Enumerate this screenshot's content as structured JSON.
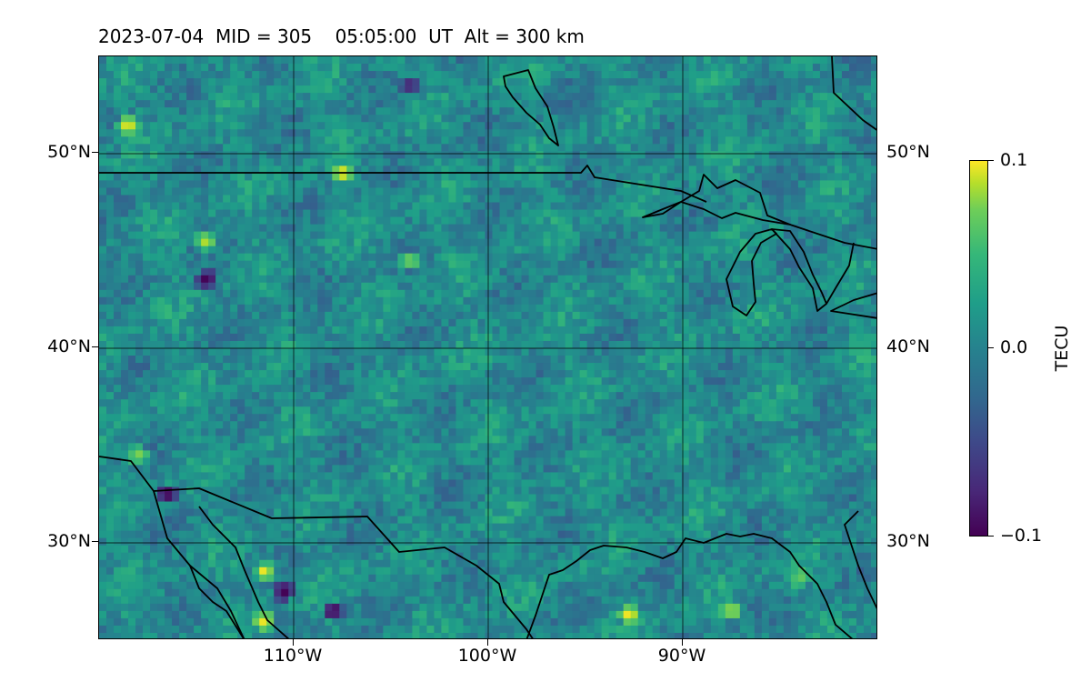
{
  "title": "2023-07-04  MID = 305    05:05:00  UT  Alt = 300 km",
  "map": {
    "projection": "PlateCarree",
    "extent_lon": [
      -120,
      -80
    ],
    "extent_lat": [
      25,
      55
    ],
    "lat_labels": [
      "50°N",
      "40°N",
      "30°N"
    ],
    "lon_labels": [
      "110°W",
      "100°W",
      "90°W"
    ],
    "gridline_color": "#000000",
    "coastline_color": "#000000"
  },
  "colorbar": {
    "label": "TECU",
    "colormap": "viridis",
    "vmin": -0.1,
    "vmax": 0.1,
    "tick_labels": [
      "0.1",
      "0.0",
      "−0.1"
    ]
  },
  "chart_data": {
    "type": "heatmap",
    "title": "2023-07-04  MID = 305    05:05:00  UT  Alt = 300 km",
    "xlabel": "",
    "ylabel": "",
    "x_ticks": [
      "110°W",
      "100°W",
      "90°W"
    ],
    "y_ticks": [
      "50°N",
      "40°N",
      "30°N"
    ],
    "xlim": [
      -120,
      -80
    ],
    "ylim": [
      25,
      55
    ],
    "value_range": [
      -0.1,
      0.1
    ],
    "colorbar_label": "TECU",
    "grid": true,
    "hotspots": [
      {
        "lon": -118.5,
        "lat": 51.5,
        "value": 0.1
      },
      {
        "lon": -107.5,
        "lat": 49.0,
        "value": 0.1
      },
      {
        "lon": -114.5,
        "lat": 45.5,
        "value": 0.09
      },
      {
        "lon": -114.5,
        "lat": 43.5,
        "value": -0.1
      },
      {
        "lon": -118,
        "lat": 34.5,
        "value": 0.08
      },
      {
        "lon": -116.5,
        "lat": 32.5,
        "value": -0.1
      },
      {
        "lon": -111.5,
        "lat": 28.5,
        "value": 0.1
      },
      {
        "lon": -110.5,
        "lat": 27.5,
        "value": -0.1
      },
      {
        "lon": -111.5,
        "lat": 26,
        "value": 0.1
      },
      {
        "lon": -108,
        "lat": 26.5,
        "value": -0.1
      },
      {
        "lon": -92.8,
        "lat": 26.3,
        "value": 0.1
      },
      {
        "lon": -87.5,
        "lat": 26.5,
        "value": 0.09
      },
      {
        "lon": -104,
        "lat": 44.5,
        "value": 0.08
      },
      {
        "lon": -104,
        "lat": 53.5,
        "value": -0.08
      },
      {
        "lon": -84,
        "lat": 28.2,
        "value": 0.07
      }
    ]
  }
}
